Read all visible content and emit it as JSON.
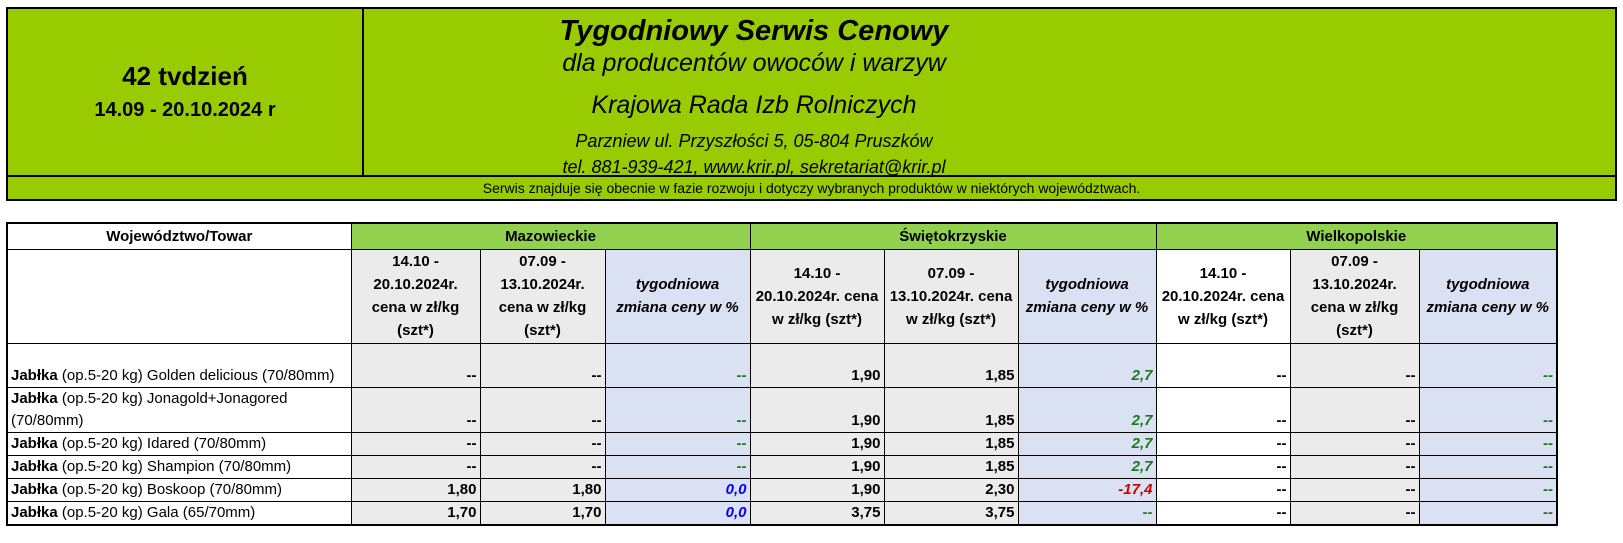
{
  "header": {
    "week": "42 tvdzień",
    "date_range": "14.09 - 20.10.2024 r",
    "title": "Tygodniowy Serwis Cenowy",
    "subtitle": "dla producentów owoców i warzyw",
    "organization": "Krajowa Rada Izb Rolniczych",
    "address": "Parzniew ul. Przyszłości 5, 05-804 Pruszków",
    "contact": "tel. 881-939-421, www.krir.pl, sekretariat@krir.pl",
    "background_color": "#99cc00"
  },
  "notice": "Serwis znajduje się obecnie w fazie rozwoju i dotyczy wybranych produktów w niektórych województwach.",
  "table": {
    "corner_label": "Województwo/Towar",
    "regions": [
      "Mazowieckie",
      "Świętokrzyskie",
      "Wielkopolskie"
    ],
    "columns": [
      "14.10 - 20.10.2024r. cena w zł/kg (szt*)",
      "07.09 - 13.10.2024r. cena w zł/kg (szt*)",
      "tygodniowa zmiana ceny w %",
      "14.10 - 20.10.2024r. cena w zł/kg (szt*)",
      "07.09 - 13.10.2024r. cena w zł/kg (szt*)",
      "tygodniowa zmiana ceny w %",
      "14.10 - 20.10.2024r. cena w zł/kg (szt*)",
      "07.09 - 13.10.2024r. cena w zł/kg (szt*)",
      "tygodniowa zmiana ceny w %"
    ],
    "rows": [
      {
        "product_bold": "Jabłka",
        "product_rest": " (op.5-20 kg) Golden delicious (70/80mm)",
        "values": [
          "--",
          "--",
          "--",
          "1,90",
          "1,85",
          "2,7",
          "--",
          "--",
          "--"
        ]
      },
      {
        "product_bold": "Jabłka",
        "product_rest": " (op.5-20 kg) Jonagold+Jonagored (70/80mm)",
        "values": [
          "--",
          "--",
          "--",
          "1,90",
          "1,85",
          "2,7",
          "--",
          "--",
          "--"
        ]
      },
      {
        "product_bold": "Jabłka",
        "product_rest": " (op.5-20 kg) Idared (70/80mm)",
        "values": [
          "--",
          "--",
          "--",
          "1,90",
          "1,85",
          "2,7",
          "--",
          "--",
          "--"
        ]
      },
      {
        "product_bold": "Jabłka",
        "product_rest": " (op.5-20 kg) Shampion (70/80mm)",
        "values": [
          "--",
          "--",
          "--",
          "1,90",
          "1,85",
          "2,7",
          "--",
          "--",
          "--"
        ]
      },
      {
        "product_bold": "Jabłka",
        "product_rest": " (op.5-20 kg) Boskoop (70/80mm)",
        "values": [
          "1,80",
          "1,80",
          "0,0",
          "1,90",
          "2,30",
          "-17,4",
          "--",
          "--",
          "--"
        ]
      },
      {
        "product_bold": "Jabłka",
        "product_rest": " (op.5-20 kg) Gala (65/70mm)",
        "values": [
          "1,70",
          "1,70",
          "0,0",
          "3,75",
          "3,75",
          "--",
          "--",
          "--",
          "--"
        ]
      }
    ]
  },
  "colors": {
    "region_header": "#92d050",
    "price_cell": "#ebebeb",
    "change_cell": "#d9e1f2",
    "positive": "#1a7a1a",
    "negative": "#cc0000",
    "zero": "#0000ff"
  }
}
